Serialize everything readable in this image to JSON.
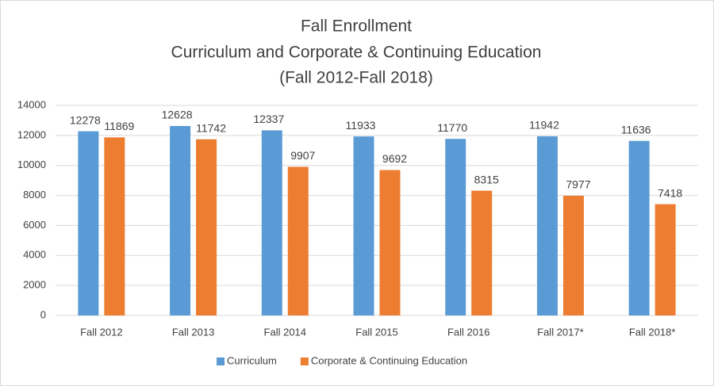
{
  "chart_data": {
    "type": "bar",
    "title": [
      "Fall Enrollment",
      "Curriculum and Corporate & Continuing Education",
      "(Fall 2012-Fall 2018)"
    ],
    "categories": [
      "Fall 2012",
      "Fall 2013",
      "Fall 2014",
      "Fall 2015",
      "Fall 2016",
      "Fall 2017*",
      "Fall 2018*"
    ],
    "series": [
      {
        "name": "Curriculum",
        "color": "#5b9bd5",
        "values": [
          12278,
          12628,
          12337,
          11933,
          11770,
          11942,
          11636
        ]
      },
      {
        "name": "Corporate & Continuing Education",
        "color": "#ed7d31",
        "values": [
          11869,
          11742,
          9907,
          9692,
          8315,
          7977,
          7418
        ]
      }
    ],
    "ylim": [
      0,
      14000
    ],
    "yticks": [
      0,
      2000,
      4000,
      6000,
      8000,
      10000,
      12000,
      14000
    ],
    "grid": true,
    "legend": "bottom"
  }
}
